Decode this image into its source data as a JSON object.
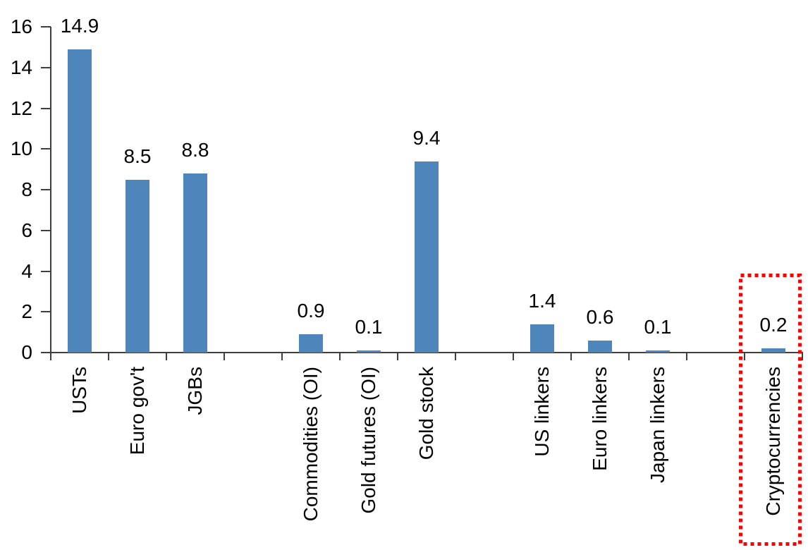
{
  "chart_data": {
    "type": "bar",
    "title": "",
    "xlabel": "",
    "ylabel": "",
    "categories": [
      "USTs",
      "Euro gov't",
      "JGBs",
      "Commodities (OI)",
      "Gold futures (OI)",
      "Gold stock",
      "US linkers",
      "Euro linkers",
      "Japan linkers",
      "Cryptocurrencies"
    ],
    "values": [
      14.9,
      8.5,
      8.8,
      0.9,
      0.1,
      9.4,
      1.4,
      0.6,
      0.1,
      0.2
    ],
    "data_labels": [
      "14.9",
      "8.5",
      "8.8",
      "0.9",
      "0.1",
      "9.4",
      "1.4",
      "0.6",
      "0.1",
      "0.2"
    ],
    "ylim": [
      0,
      16
    ],
    "yticks": [
      0,
      2,
      4,
      6,
      8,
      10,
      12,
      14,
      16
    ],
    "grid": false,
    "legend": false,
    "bar_color": "#4E86BC",
    "axis_color": "#3f3f3f",
    "text_color": "#000000",
    "highlight": {
      "category": "Cryptocurrencies",
      "style": "red-dotted-box",
      "color": "#FF0000"
    },
    "layout": {
      "slot_count": 13,
      "slots": [
        0,
        1,
        2,
        4,
        5,
        6,
        8,
        9,
        10,
        12
      ],
      "groups_note": "empty slots separate groups: govt bonds | gold/commodities | linkers | crypto"
    }
  }
}
